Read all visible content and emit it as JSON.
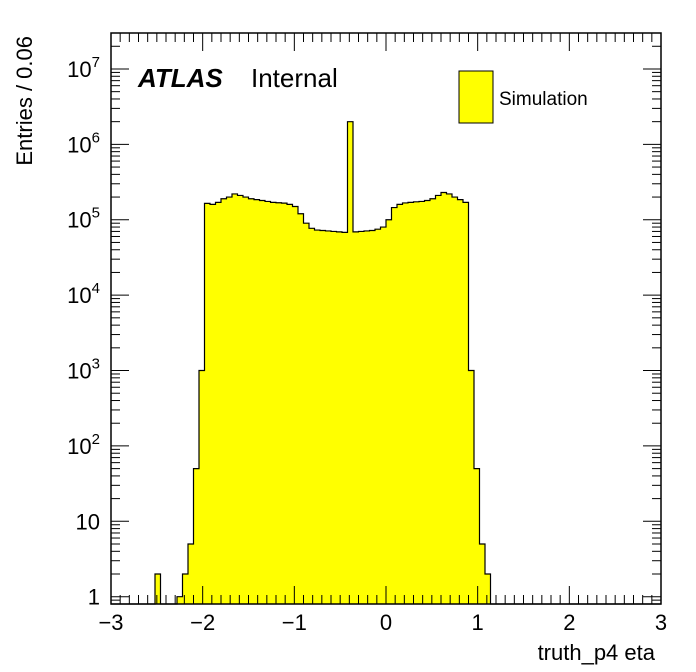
{
  "chart_data": {
    "type": "histogram",
    "xlabel": "truth_p4 eta",
    "ylabel": "Entries / 0.06",
    "xlim": [
      -3,
      3
    ],
    "ylim": [
      0.8,
      30000000
    ],
    "yscale": "log",
    "x_tick_labels": [
      "−3",
      "−2",
      "−1",
      "0",
      "1",
      "2",
      "3"
    ],
    "x_tick_values": [
      -3,
      -2,
      -1,
      0,
      1,
      2,
      3
    ],
    "y_tick_labels": [
      {
        "base": "1",
        "exp": ""
      },
      {
        "base": "10",
        "exp": ""
      },
      {
        "base": "10",
        "exp": "2"
      },
      {
        "base": "10",
        "exp": "3"
      },
      {
        "base": "10",
        "exp": "4"
      },
      {
        "base": "10",
        "exp": "5"
      },
      {
        "base": "10",
        "exp": "6"
      },
      {
        "base": "10",
        "exp": "7"
      }
    ],
    "y_tick_values": [
      1,
      10,
      100,
      1000,
      10000,
      100000,
      1000000,
      10000000
    ],
    "bin_edges": [
      -3,
      3
    ],
    "bin_width": 0.06,
    "values": [
      0,
      0,
      0,
      0,
      0,
      0,
      0,
      0,
      2,
      0,
      0,
      0,
      1,
      2,
      5,
      50,
      1000,
      165000,
      160000,
      170000,
      190000,
      200000,
      220000,
      210000,
      200000,
      190000,
      185000,
      180000,
      175000,
      170000,
      168000,
      166000,
      160000,
      150000,
      120000,
      90000,
      77000,
      73000,
      72000,
      71000,
      70000,
      69000,
      68000,
      2000000,
      69000,
      70000,
      71000,
      72000,
      75000,
      80000,
      100000,
      145000,
      160000,
      167000,
      170000,
      173000,
      175000,
      180000,
      190000,
      210000,
      230000,
      220000,
      200000,
      185000,
      170000,
      1000,
      50,
      5,
      2,
      0,
      0,
      0,
      0,
      0,
      0,
      0,
      0,
      0,
      0,
      0,
      0,
      0,
      0,
      0,
      0,
      0,
      0,
      0,
      0,
      0,
      0,
      0,
      0,
      0,
      0,
      0,
      0,
      0,
      0,
      0
    ],
    "color": "#ffff00",
    "edge_color": "#000000",
    "legend": [
      {
        "label": "Simulation",
        "color": "#ffff00"
      }
    ],
    "legend_position": "top-right"
  },
  "atlas_label": "ATLAS",
  "atlas_status": "Internal"
}
